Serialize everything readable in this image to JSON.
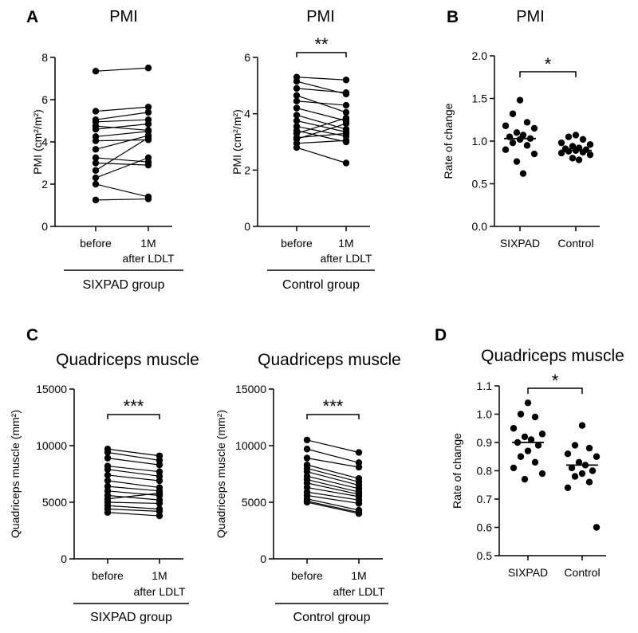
{
  "panel_letters": [
    "A",
    "B",
    "C",
    "D"
  ],
  "chart_data": [
    {
      "type": "paired-line",
      "panel": "A",
      "title": "PMI",
      "ylabel": "PMI (cm²/m²)",
      "ylim": [
        0,
        8
      ],
      "yticks": [
        0,
        2,
        4,
        6,
        8
      ],
      "yticklabels": [
        "0",
        "2",
        "4",
        "6",
        "8"
      ],
      "categories": [
        "before",
        "1M"
      ],
      "sublabel": "after LDLT",
      "group_label": "SIXPAD group",
      "significance": "",
      "pairs": [
        [
          7.35,
          7.5
        ],
        [
          5.45,
          5.65
        ],
        [
          5.05,
          5.4
        ],
        [
          4.95,
          5.05
        ],
        [
          4.75,
          4.55
        ],
        [
          4.6,
          4.85
        ],
        [
          4.25,
          4.5
        ],
        [
          4.05,
          4.1
        ],
        [
          3.65,
          4.3
        ],
        [
          3.25,
          3.05
        ],
        [
          3.0,
          2.9
        ],
        [
          2.65,
          4.2
        ],
        [
          2.3,
          3.25
        ],
        [
          1.25,
          1.3
        ],
        [
          2.0,
          1.4
        ]
      ]
    },
    {
      "type": "paired-line",
      "panel": "A",
      "title": "PMI",
      "ylabel": "PMI (cm²/m²)",
      "ylim": [
        0,
        6
      ],
      "yticks": [
        0,
        2,
        4,
        6
      ],
      "yticklabels": [
        "0",
        "2",
        "4",
        "6"
      ],
      "categories": [
        "before",
        "1M"
      ],
      "sublabel": "after LDLT",
      "group_label": "Control group",
      "significance": "**",
      "pairs": [
        [
          5.3,
          5.2
        ],
        [
          5.15,
          4.7
        ],
        [
          4.9,
          4.75
        ],
        [
          4.65,
          4.05
        ],
        [
          4.45,
          4.3
        ],
        [
          4.2,
          3.75
        ],
        [
          3.95,
          3.45
        ],
        [
          3.75,
          3.35
        ],
        [
          3.55,
          3.2
        ],
        [
          3.4,
          3.0
        ],
        [
          3.3,
          3.85
        ],
        [
          3.1,
          3.65
        ],
        [
          2.95,
          3.05
        ],
        [
          2.8,
          2.25
        ],
        [
          3.15,
          3.3
        ]
      ]
    },
    {
      "type": "scatter-dot",
      "panel": "B",
      "title": "PMI",
      "ylabel": "Rate of change",
      "ylim": [
        0,
        2
      ],
      "yticks": [
        0,
        0.5,
        1,
        1.5,
        2
      ],
      "yticklabels": [
        "0.0",
        "0.5",
        "1.0",
        "1.5",
        "2.0"
      ],
      "categories": [
        "SIXPAD",
        "Control"
      ],
      "significance": "*",
      "groups": [
        {
          "name": "SIXPAD",
          "median": 1.03,
          "values": [
            1.48,
            1.32,
            1.22,
            1.18,
            1.15,
            1.1,
            1.07,
            1.05,
            1.03,
            1.02,
            0.98,
            0.95,
            0.9,
            0.85,
            0.76,
            0.62
          ]
        },
        {
          "name": "Control",
          "median": 0.89,
          "values": [
            1.07,
            1.05,
            1.02,
            0.98,
            0.96,
            0.94,
            0.92,
            0.91,
            0.9,
            0.89,
            0.88,
            0.87,
            0.86,
            0.84,
            0.8,
            0.78
          ]
        }
      ]
    },
    {
      "type": "paired-line",
      "panel": "C",
      "title": "Quadriceps muscle",
      "ylabel": "Quadriceps muscle (mm²)",
      "ylim": [
        0,
        15000
      ],
      "yticks": [
        0,
        5000,
        10000,
        15000
      ],
      "yticklabels": [
        "0",
        "5000",
        "10000",
        "15000"
      ],
      "categories": [
        "before",
        "1M"
      ],
      "sublabel": "after LDLT",
      "group_label": "SIXPAD group",
      "significance": "***",
      "pairs": [
        [
          9700,
          9100
        ],
        [
          9400,
          8700
        ],
        [
          8900,
          8300
        ],
        [
          8200,
          7700
        ],
        [
          7900,
          7300
        ],
        [
          7400,
          6900
        ],
        [
          6900,
          6300
        ],
        [
          6400,
          6000
        ],
        [
          6000,
          5600
        ],
        [
          5600,
          5200
        ],
        [
          5300,
          5800
        ],
        [
          5000,
          4900
        ],
        [
          4700,
          4400
        ],
        [
          4400,
          4200
        ],
        [
          4100,
          3800
        ]
      ]
    },
    {
      "type": "paired-line",
      "panel": "C",
      "title": "Quadriceps muscle",
      "ylabel": "Quadriceps muscle (mm²)",
      "ylim": [
        0,
        15000
      ],
      "yticks": [
        0,
        5000,
        10000,
        15000
      ],
      "yticklabels": [
        "0",
        "5000",
        "10000",
        "15000"
      ],
      "categories": [
        "before",
        "1M"
      ],
      "sublabel": "after LDLT",
      "group_label": "Control group",
      "significance": "***",
      "pairs": [
        [
          10500,
          9400
        ],
        [
          9700,
          8500
        ],
        [
          8900,
          8100
        ],
        [
          8300,
          7100
        ],
        [
          8000,
          6800
        ],
        [
          7700,
          6500
        ],
        [
          7300,
          6200
        ],
        [
          7000,
          5900
        ],
        [
          6700,
          5700
        ],
        [
          6300,
          5500
        ],
        [
          5900,
          5200
        ],
        [
          5600,
          4900
        ],
        [
          5300,
          4300
        ],
        [
          5100,
          4100
        ],
        [
          5000,
          4000
        ]
      ]
    },
    {
      "type": "scatter-dot",
      "panel": "D",
      "title": "Quadriceps muscle",
      "ylabel": "Rate of change",
      "ylim": [
        0.5,
        1.1
      ],
      "yticks": [
        0.5,
        0.6,
        0.7,
        0.8,
        0.9,
        1.0,
        1.1
      ],
      "yticklabels": [
        "0.5",
        "0.6",
        "0.7",
        "0.8",
        "0.9",
        "1.0",
        "1.1"
      ],
      "categories": [
        "SIXPAD",
        "Control"
      ],
      "significance": "*",
      "groups": [
        {
          "name": "SIXPAD",
          "median": 0.9,
          "values": [
            1.04,
            1.0,
            0.99,
            0.95,
            0.93,
            0.92,
            0.91,
            0.9,
            0.89,
            0.87,
            0.85,
            0.83,
            0.81,
            0.79,
            0.77
          ]
        },
        {
          "name": "Control",
          "median": 0.82,
          "values": [
            0.96,
            0.89,
            0.88,
            0.86,
            0.85,
            0.83,
            0.82,
            0.81,
            0.8,
            0.79,
            0.78,
            0.76,
            0.74,
            0.6
          ]
        }
      ]
    }
  ]
}
